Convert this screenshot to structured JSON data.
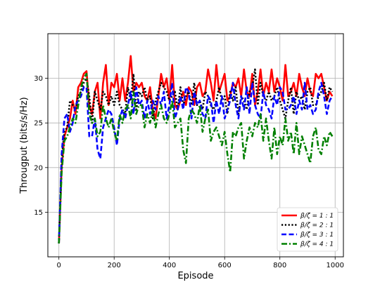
{
  "chart_data": {
    "type": "line",
    "title": "",
    "xlabel": "Episode",
    "ylabel": "Througput (bits/s/Hz)",
    "xlim": [
      -40,
      1030
    ],
    "ylim": [
      10.0,
      35.0
    ],
    "xticks": [
      0,
      200,
      400,
      600,
      800,
      1000
    ],
    "yticks": [
      15,
      20,
      25,
      30
    ],
    "grid": true,
    "legend_position": "lower-right",
    "x": [
      0,
      10,
      20,
      30,
      40,
      50,
      60,
      70,
      80,
      90,
      100,
      110,
      120,
      130,
      140,
      150,
      160,
      170,
      180,
      190,
      200,
      210,
      220,
      230,
      240,
      250,
      260,
      270,
      280,
      290,
      300,
      310,
      320,
      330,
      340,
      350,
      360,
      370,
      380,
      390,
      400,
      410,
      420,
      430,
      440,
      450,
      460,
      470,
      480,
      490,
      500,
      510,
      520,
      530,
      540,
      550,
      560,
      570,
      580,
      590,
      600,
      610,
      620,
      630,
      640,
      650,
      660,
      670,
      680,
      690,
      700,
      710,
      720,
      730,
      740,
      750,
      760,
      770,
      780,
      790,
      800,
      810,
      820,
      830,
      840,
      850,
      860,
      870,
      880,
      890,
      900,
      910,
      920,
      930,
      940,
      950,
      960,
      970,
      980,
      990
    ],
    "series": [
      {
        "name": "β/ζ = 1 : 1",
        "color": "#ff0000",
        "style": "solid",
        "values": [
          11.5,
          20.0,
          23.5,
          24.5,
          25.5,
          27.5,
          26.0,
          29.0,
          29.5,
          30.5,
          30.8,
          27.0,
          26.0,
          28.5,
          29.5,
          25.5,
          29.5,
          31.5,
          27.0,
          29.5,
          29.0,
          30.5,
          27.5,
          30.0,
          27.5,
          29.5,
          32.5,
          28.5,
          29.5,
          29.0,
          29.5,
          28.0,
          27.5,
          29.0,
          26.5,
          25.5,
          28.0,
          30.5,
          29.0,
          30.0,
          27.5,
          31.5,
          27.0,
          26.5,
          27.5,
          28.5,
          27.0,
          29.0,
          28.5,
          27.0,
          29.0,
          29.5,
          28.0,
          28.5,
          31.0,
          29.5,
          27.5,
          31.5,
          28.5,
          29.5,
          30.5,
          27.5,
          28.0,
          29.5,
          29.0,
          30.0,
          28.0,
          31.0,
          28.5,
          28.0,
          30.5,
          27.0,
          28.5,
          31.0,
          28.0,
          29.5,
          28.5,
          31.0,
          28.5,
          30.0,
          29.0,
          27.5,
          31.5,
          28.0,
          28.5,
          29.5,
          28.0,
          30.5,
          29.0,
          28.0,
          30.0,
          28.5,
          28.0,
          30.5,
          30.0,
          30.5,
          29.0,
          27.5,
          28.5,
          28.0
        ],
        "values_override": null
      },
      {
        "name": "β/ζ = 2 : 1",
        "color": "#000000",
        "style": "dotted",
        "values": [
          11.5,
          21.0,
          24.0,
          24.5,
          27.5,
          27.0,
          26.5,
          28.0,
          28.5,
          29.5,
          30.0,
          28.0,
          25.0,
          28.5,
          27.5,
          26.5,
          28.5,
          28.0,
          27.0,
          28.0,
          27.0,
          28.5,
          27.0,
          26.5,
          26.0,
          29.0,
          27.5,
          30.5,
          26.5,
          28.5,
          28.0,
          29.0,
          27.5,
          28.0,
          25.5,
          27.5,
          28.5,
          29.5,
          29.0,
          28.5,
          27.5,
          28.0,
          28.5,
          26.5,
          29.0,
          27.0,
          28.0,
          28.5,
          27.0,
          29.5,
          27.0,
          27.5,
          26.5,
          28.5,
          28.0,
          27.0,
          26.5,
          27.5,
          29.0,
          27.5,
          28.0,
          26.0,
          28.5,
          27.5,
          29.0,
          26.0,
          28.0,
          27.5,
          26.5,
          28.5,
          29.0,
          31.0,
          27.0,
          29.5,
          28.0,
          27.5,
          28.5,
          27.5,
          28.0,
          29.0,
          27.5,
          26.5,
          25.5,
          27.5,
          29.0,
          26.0,
          28.5,
          27.5,
          28.0,
          26.5,
          28.5,
          29.0,
          27.0,
          27.0,
          28.0,
          28.5,
          29.5,
          27.5,
          29.0,
          28.5
        ]
      },
      {
        "name": "β/ζ = 3 : 1",
        "color": "#0000ff",
        "style": "dashed",
        "values": [
          11.5,
          21.5,
          25.5,
          26.0,
          24.0,
          25.0,
          27.0,
          27.5,
          28.0,
          29.0,
          29.0,
          23.5,
          23.5,
          25.5,
          22.0,
          21.0,
          24.5,
          25.5,
          26.5,
          26.0,
          24.5,
          22.5,
          25.5,
          26.5,
          25.5,
          27.0,
          28.5,
          26.0,
          29.0,
          27.0,
          27.5,
          25.5,
          27.5,
          26.0,
          27.5,
          26.5,
          28.0,
          27.0,
          28.5,
          25.5,
          27.0,
          29.5,
          25.5,
          26.5,
          28.0,
          26.5,
          29.0,
          28.5,
          25.5,
          28.5,
          27.0,
          27.5,
          26.0,
          25.5,
          28.0,
          27.5,
          25.0,
          27.5,
          26.0,
          28.0,
          25.5,
          26.5,
          27.5,
          29.5,
          27.0,
          25.5,
          28.0,
          26.5,
          29.0,
          26.0,
          29.5,
          27.0,
          26.0,
          25.5,
          28.5,
          27.0,
          26.5,
          25.5,
          28.0,
          27.0,
          29.0,
          28.5,
          26.5,
          26.5,
          27.0,
          28.0,
          26.0,
          27.5,
          26.5,
          29.5,
          26.5,
          27.0,
          26.0,
          26.5,
          28.5,
          29.5,
          28.0,
          26.0,
          27.5,
          28.0
        ]
      },
      {
        "name": "β/ζ = 4 : 1",
        "color": "#008000",
        "style": "dashdot",
        "values": [
          11.5,
          19.5,
          23.0,
          23.5,
          24.5,
          25.5,
          25.0,
          27.0,
          29.0,
          30.0,
          30.5,
          26.0,
          25.0,
          25.5,
          23.5,
          24.0,
          27.0,
          25.5,
          24.5,
          25.5,
          24.0,
          23.0,
          26.0,
          25.0,
          26.5,
          27.0,
          25.5,
          28.5,
          26.0,
          27.0,
          27.0,
          24.5,
          26.0,
          25.0,
          26.5,
          24.5,
          26.0,
          27.0,
          25.5,
          25.0,
          26.0,
          27.5,
          24.5,
          25.0,
          25.5,
          22.0,
          20.5,
          25.5,
          26.5,
          26.0,
          25.0,
          27.0,
          24.0,
          25.5,
          26.5,
          23.0,
          24.0,
          24.5,
          23.5,
          22.5,
          24.0,
          21.5,
          19.5,
          24.0,
          23.5,
          24.5,
          25.0,
          21.0,
          23.0,
          24.5,
          23.5,
          25.0,
          24.5,
          26.0,
          23.0,
          25.5,
          23.0,
          21.0,
          24.5,
          21.5,
          23.5,
          22.5,
          25.5,
          23.0,
          24.0,
          21.5,
          25.0,
          21.5,
          23.5,
          22.5,
          21.5,
          20.5,
          23.5,
          24.5,
          22.0,
          21.5,
          23.5,
          22.5,
          24.0,
          23.5
        ]
      }
    ]
  }
}
